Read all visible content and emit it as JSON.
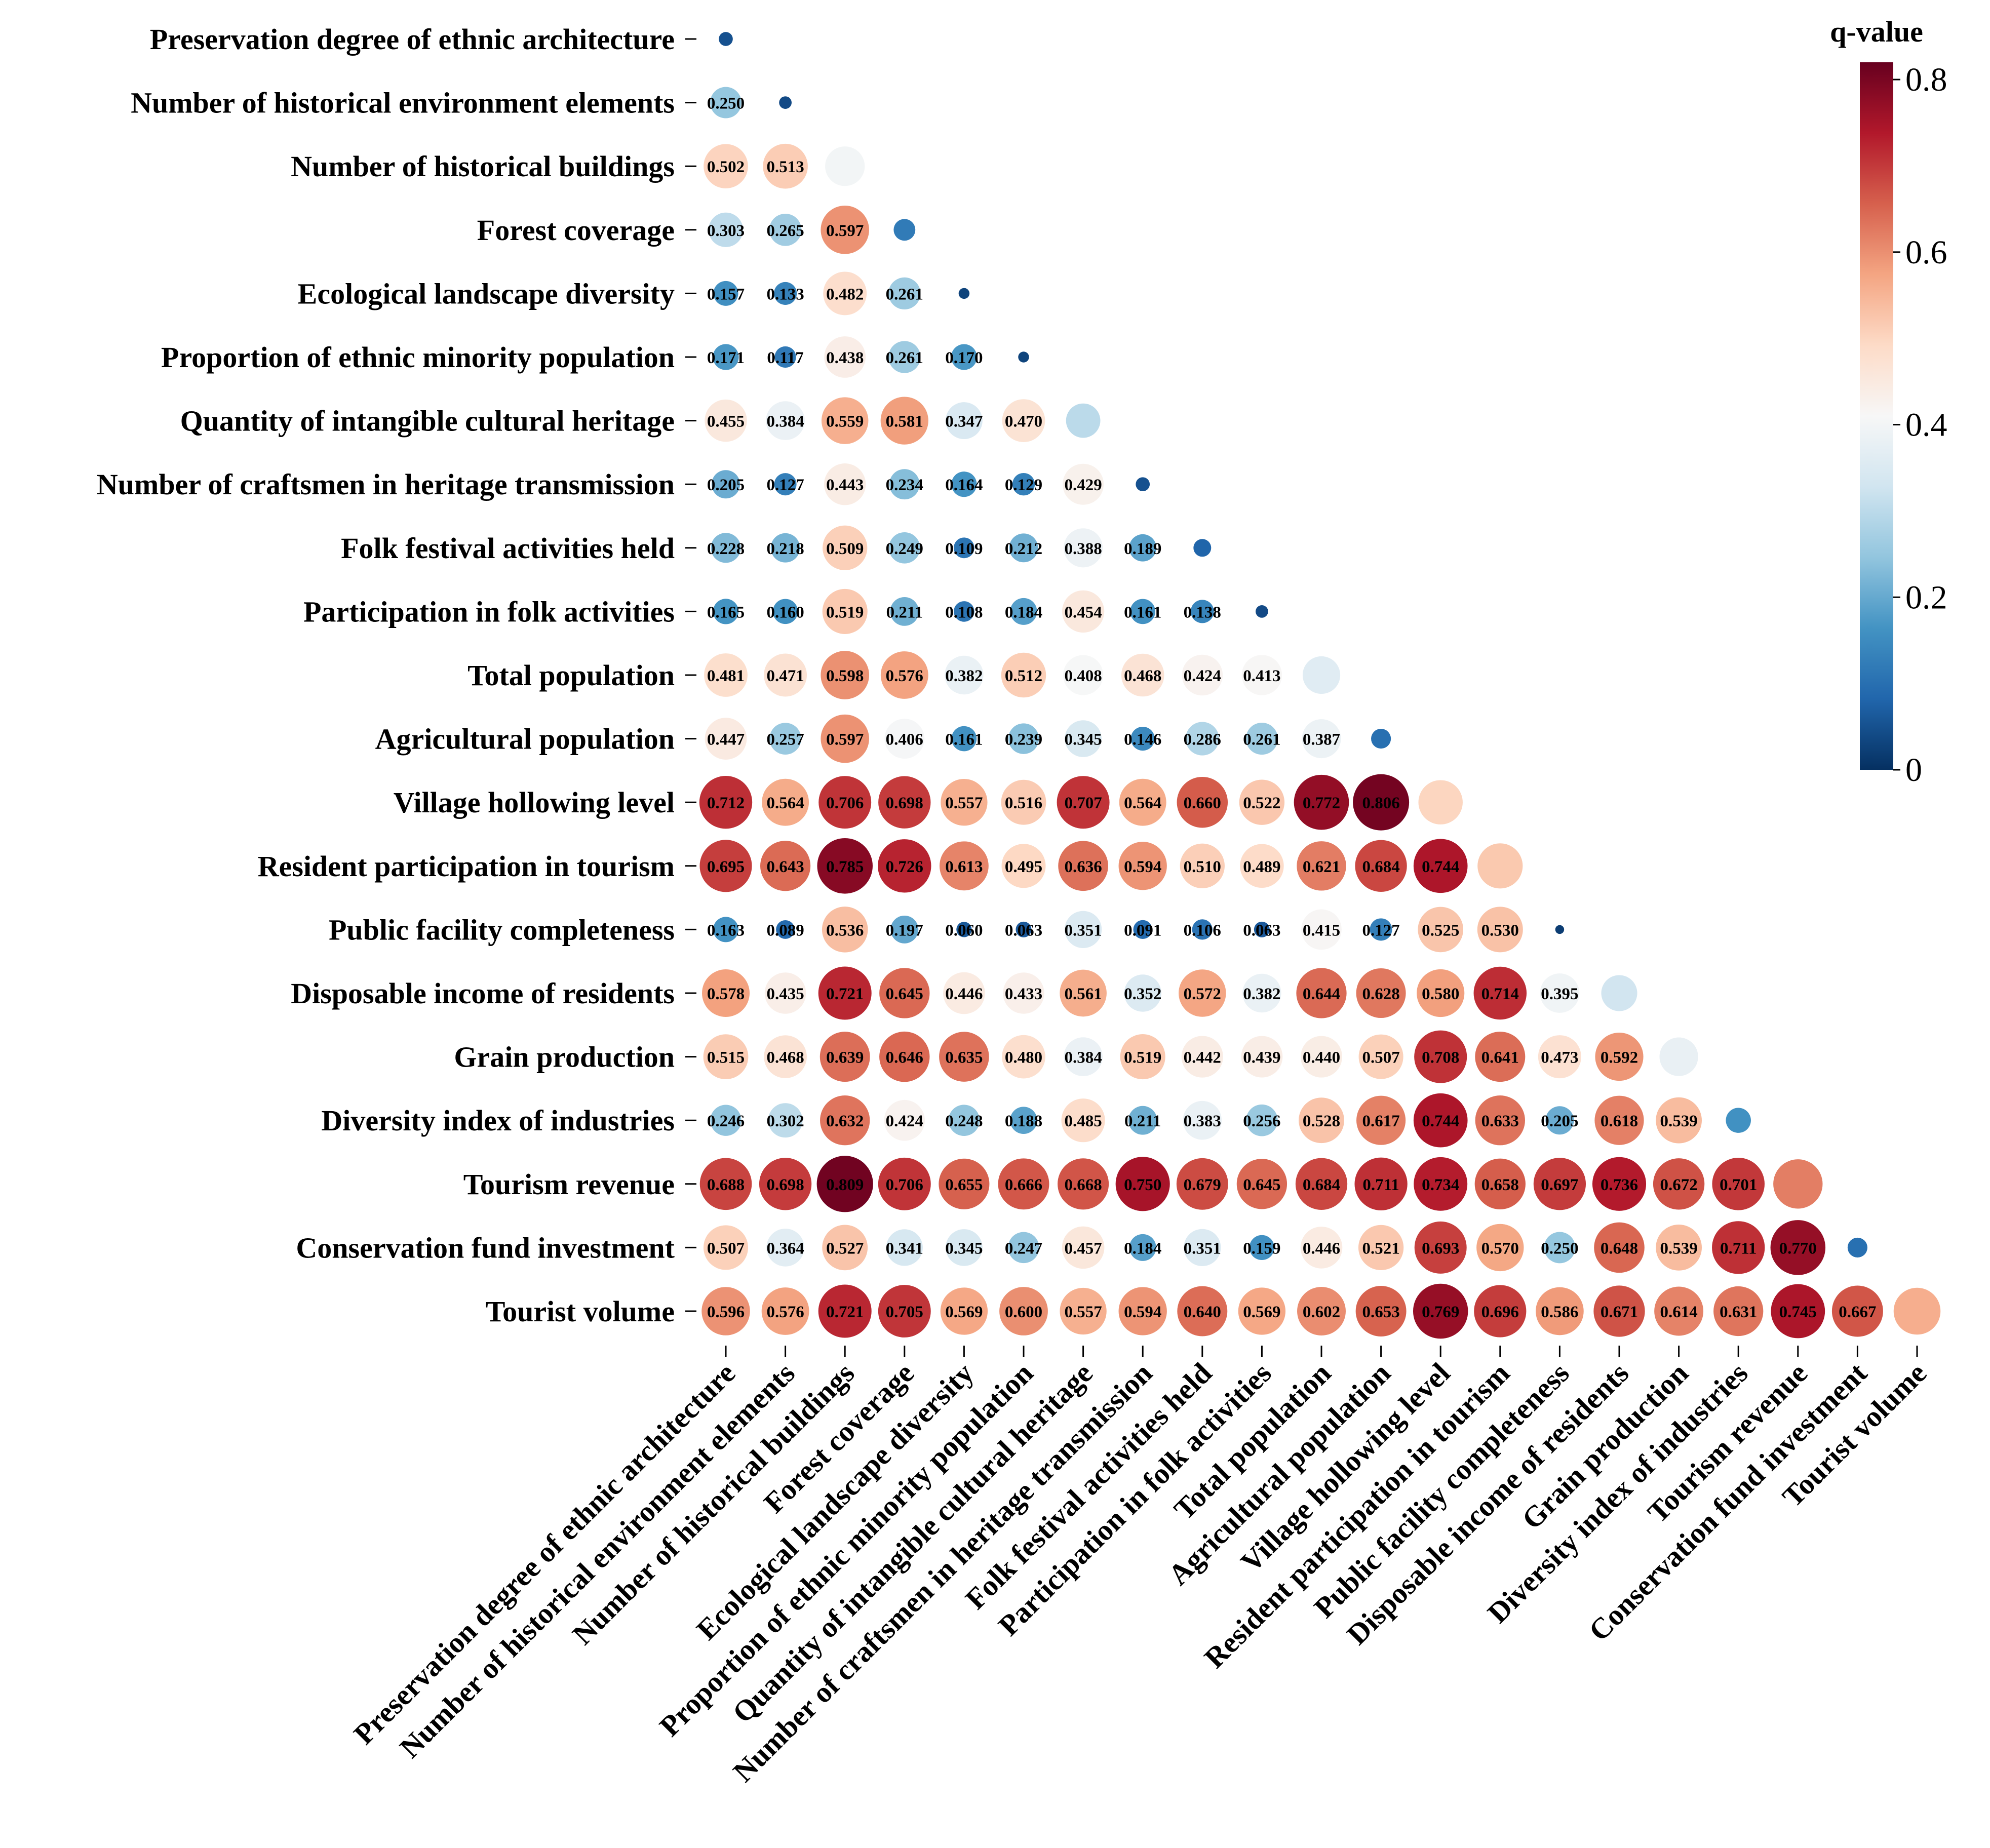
{
  "chart_data": {
    "type": "heatmap",
    "style": "lower-triangle bubble matrix; circle size and color encode q-value",
    "title": "",
    "colorbar": {
      "title": "q-value",
      "range": [
        0,
        0.82
      ],
      "ticks": [
        "0",
        "0.2",
        "0.4",
        "0.6",
        "0.8"
      ],
      "tick_values": [
        0,
        0.2,
        0.4,
        0.6,
        0.8
      ],
      "colors": [
        "#053061",
        "#2166ac",
        "#4393c3",
        "#92c5de",
        "#d1e5f0",
        "#f7f7f7",
        "#fddbc7",
        "#f4a582",
        "#d6604d",
        "#b2182b",
        "#67001f"
      ]
    },
    "labels": [
      "Preservation degree of ethnic architecture",
      "Number of historical environment elements",
      "Number of historical buildings",
      "Forest coverage",
      "Ecological landscape diversity",
      "Proportion of ethnic minority population",
      "Quantity of intangible cultural heritage",
      "Number of craftsmen in heritage transmission",
      "Folk festival activities held",
      "Participation in folk activities",
      "Total population",
      "Agricultural population",
      "Village hollowing level",
      "Resident participation in tourism",
      "Public facility completeness",
      "Disposable income of residents",
      "Grain production",
      "Diversity index of industries",
      "Tourism revenue",
      "Conservation fund investment",
      "Tourist volume"
    ],
    "diagonal": [
      0.05,
      0.04,
      0.4,
      0.12,
      0.03,
      0.03,
      0.3,
      0.05,
      0.08,
      0.04,
      0.36,
      0.1,
      0.5,
      0.52,
      0.02,
      0.33,
      0.38,
      0.16,
      0.62,
      0.1,
      0.56
    ],
    "values": [
      [],
      [
        "0.250"
      ],
      [
        "0.502",
        "0.513"
      ],
      [
        "0.303",
        "0.265",
        "0.597"
      ],
      [
        "0.157",
        "0.133",
        "0.482",
        "0.261"
      ],
      [
        "0.171",
        "0.117",
        "0.438",
        "0.261",
        "0.170"
      ],
      [
        "0.455",
        "0.384",
        "0.559",
        "0.581",
        "0.347",
        "0.470"
      ],
      [
        "0.205",
        "0.127",
        "0.443",
        "0.234",
        "0.164",
        "0.129",
        "0.429"
      ],
      [
        "0.228",
        "0.218",
        "0.509",
        "0.249",
        "0.109",
        "0.212",
        "0.388",
        "0.189"
      ],
      [
        "0.165",
        "0.160",
        "0.519",
        "0.211",
        "0.108",
        "0.184",
        "0.454",
        "0.161",
        "0.138"
      ],
      [
        "0.481",
        "0.471",
        "0.598",
        "0.576",
        "0.382",
        "0.512",
        "0.408",
        "0.468",
        "0.424",
        "0.413"
      ],
      [
        "0.447",
        "0.257",
        "0.597",
        "0.406",
        "0.161",
        "0.239",
        "0.345",
        "0.146",
        "0.286",
        "0.261",
        "0.387"
      ],
      [
        "0.712",
        "0.564",
        "0.706",
        "0.698",
        "0.557",
        "0.516",
        "0.707",
        "0.564",
        "0.660",
        "0.522",
        "0.772",
        "0.806"
      ],
      [
        "0.695",
        "0.643",
        "0.785",
        "0.726",
        "0.613",
        "0.495",
        "0.636",
        "0.594",
        "0.510",
        "0.489",
        "0.621",
        "0.684",
        "0.744"
      ],
      [
        "0.163",
        "0.089",
        "0.536",
        "0.197",
        "0.060",
        "0.063",
        "0.351",
        "0.091",
        "0.106",
        "0.063",
        "0.415",
        "0.127",
        "0.525",
        "0.530"
      ],
      [
        "0.578",
        "0.435",
        "0.721",
        "0.645",
        "0.446",
        "0.433",
        "0.561",
        "0.352",
        "0.572",
        "0.382",
        "0.644",
        "0.628",
        "0.580",
        "0.714",
        "0.395"
      ],
      [
        "0.515",
        "0.468",
        "0.639",
        "0.646",
        "0.635",
        "0.480",
        "0.384",
        "0.519",
        "0.442",
        "0.439",
        "0.440",
        "0.507",
        "0.708",
        "0.641",
        "0.473",
        "0.592"
      ],
      [
        "0.246",
        "0.302",
        "0.632",
        "0.424",
        "0.248",
        "0.188",
        "0.485",
        "0.211",
        "0.383",
        "0.256",
        "0.528",
        "0.617",
        "0.744",
        "0.633",
        "0.205",
        "0.618",
        "0.539"
      ],
      [
        "0.688",
        "0.698",
        "0.809",
        "0.706",
        "0.655",
        "0.666",
        "0.668",
        "0.750",
        "0.679",
        "0.645",
        "0.684",
        "0.711",
        "0.734",
        "0.658",
        "0.697",
        "0.736",
        "0.672",
        "0.701"
      ],
      [
        "0.507",
        "0.364",
        "0.527",
        "0.341",
        "0.345",
        "0.247",
        "0.457",
        "0.184",
        "0.351",
        "0.159",
        "0.446",
        "0.521",
        "0.693",
        "0.570",
        "0.250",
        "0.648",
        "0.539",
        "0.711",
        "0.770"
      ],
      [
        "0.596",
        "0.576",
        "0.721",
        "0.705",
        "0.569",
        "0.600",
        "0.557",
        "0.594",
        "0.640",
        "0.569",
        "0.602",
        "0.653",
        "0.769",
        "0.696",
        "0.586",
        "0.671",
        "0.614",
        "0.631",
        "0.745",
        "0.667"
      ]
    ]
  }
}
